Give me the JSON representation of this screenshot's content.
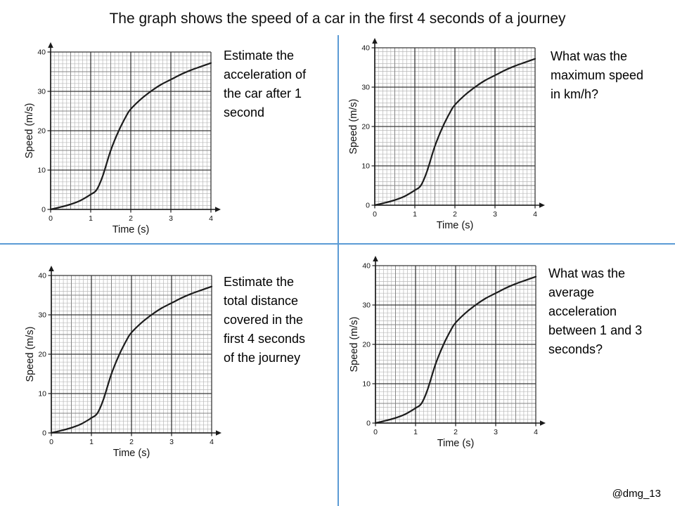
{
  "title": "The graph shows the speed of a car in the first 4 seconds of a journey",
  "watermark": "@dmg_13",
  "colors": {
    "divider": "#5B9BD5",
    "curve": "#1c1c1c",
    "grid_minor": "#b8b8b8",
    "grid_medium": "#858585",
    "grid_major": "#383838",
    "axis": "#1a1a1a",
    "text": "#000000"
  },
  "panels": [
    {
      "position": "top-left",
      "question": "Estimate the\nacceleration of\nthe car after 1\nsecond"
    },
    {
      "position": "top-right",
      "question": "What was the\nmaximum speed\nin km/h?"
    },
    {
      "position": "bottom-left",
      "question": "Estimate the\ntotal distance\ncovered in the\nfirst 4 seconds\nof the journey"
    },
    {
      "position": "bottom-right",
      "question": "What was the\naverage\nacceleration\nbetween 1 and 3\nseconds?"
    }
  ],
  "chart_data": {
    "type": "line",
    "title": "",
    "xlabel": "Time (s)",
    "ylabel": "Speed (m/s)",
    "xlim": [
      0,
      4
    ],
    "ylim": [
      0,
      40
    ],
    "x_ticks": [
      0,
      1,
      2,
      3,
      4
    ],
    "y_ticks": [
      0,
      10,
      20,
      30,
      40
    ],
    "grid": {
      "minor_x": 0.1,
      "minor_y": 1,
      "medium_x": 0.5,
      "medium_y": 5,
      "major_x": 1,
      "major_y": 10
    },
    "legend": "none",
    "repeated_panels": 4,
    "series": [
      {
        "name": "car-speed",
        "x": [
          0,
          0.25,
          0.5,
          0.75,
          1.0,
          1.15,
          1.3,
          1.5,
          1.7,
          1.9,
          2.0,
          2.25,
          2.5,
          2.75,
          3.0,
          3.25,
          3.5,
          3.75,
          4.0
        ],
        "y": [
          0,
          0.6,
          1.3,
          2.3,
          3.8,
          5.0,
          8.5,
          15,
          20,
          24,
          25.5,
          28,
          30,
          31.7,
          33,
          34.3,
          35.4,
          36.3,
          37.2
        ]
      }
    ]
  }
}
